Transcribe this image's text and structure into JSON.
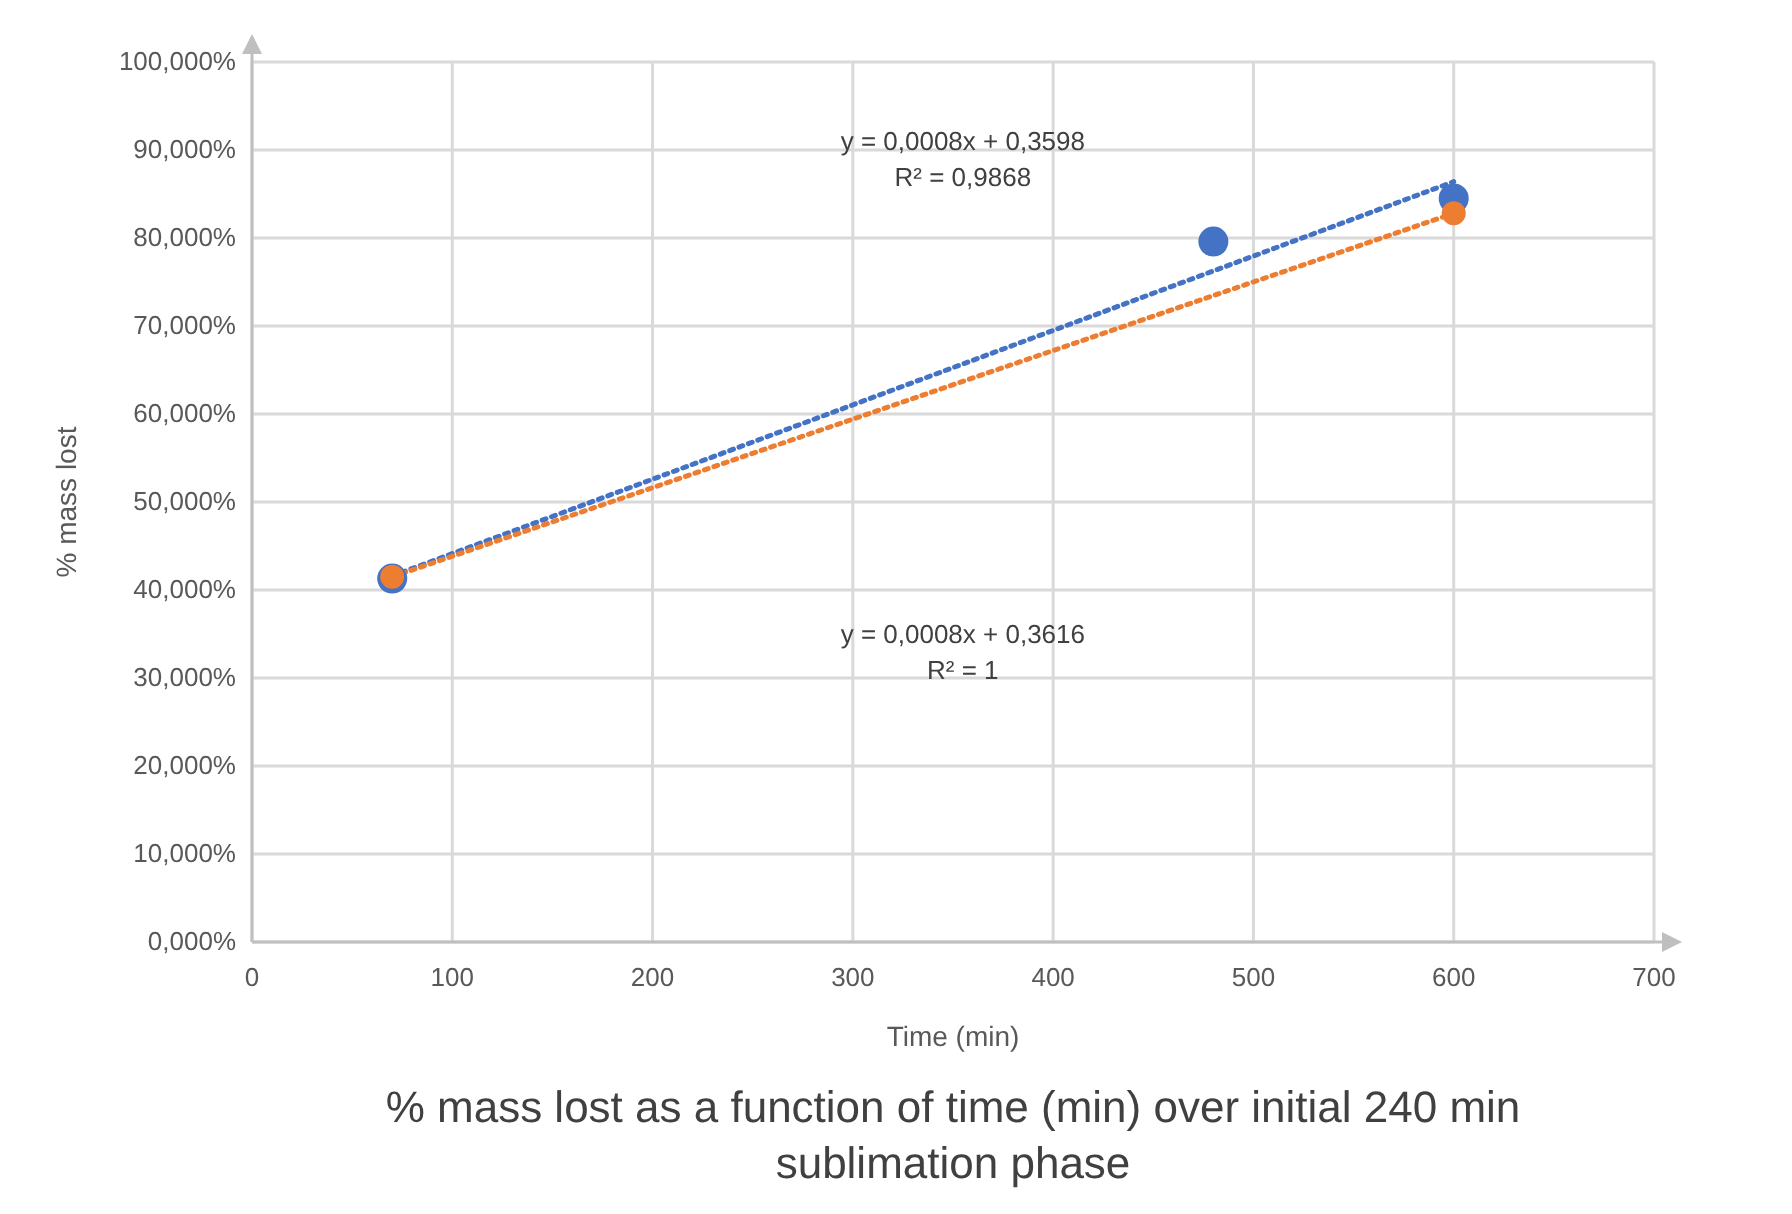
{
  "chart_data": {
    "type": "scatter",
    "title": "% mass lost as a function of time (min) over initial 240 min sublimation phase",
    "xlabel": "Time (min)",
    "ylabel": "% mass lost",
    "xlim": [
      0,
      700
    ],
    "xticks": [
      0,
      100,
      200,
      300,
      400,
      500,
      600,
      700
    ],
    "ylim": [
      0,
      100
    ],
    "yticks": [
      {
        "value": 0,
        "label": "0,000%"
      },
      {
        "value": 10,
        "label": "10,000%"
      },
      {
        "value": 20,
        "label": "20,000%"
      },
      {
        "value": 30,
        "label": "30,000%"
      },
      {
        "value": 40,
        "label": "40,000%"
      },
      {
        "value": 50,
        "label": "50,000%"
      },
      {
        "value": 60,
        "label": "60,000%"
      },
      {
        "value": 70,
        "label": "70,000%"
      },
      {
        "value": 80,
        "label": "80,000%"
      },
      {
        "value": 90,
        "label": "90,000%"
      },
      {
        "value": 100,
        "label": "100,000%"
      }
    ],
    "grid": true,
    "marker": "circle",
    "series": [
      {
        "color": "#4472c4",
        "x": [
          70,
          480,
          600
        ],
        "values": [
          41.3,
          79.6,
          84.5
        ]
      },
      {
        "color": "#ed7d31",
        "x": [
          70,
          600
        ],
        "values": [
          41.5,
          82.8
        ]
      },
      {
        "type": "line",
        "color": "#4472c4",
        "x": [
          70,
          600
        ],
        "values": [
          41.6,
          86.4
        ],
        "line_style": "dotted",
        "marker": "none"
      },
      {
        "type": "line",
        "color": "#ed7d31",
        "x": [
          70,
          600
        ],
        "values": [
          41.5,
          82.8
        ],
        "line_style": "dotted",
        "marker": "none"
      }
    ],
    "annotations": [
      "y = 0,0008x + 0,3598\nR² = 0,9868",
      "y = 0,0008x + 0,3616\nR² = 1"
    ]
  }
}
